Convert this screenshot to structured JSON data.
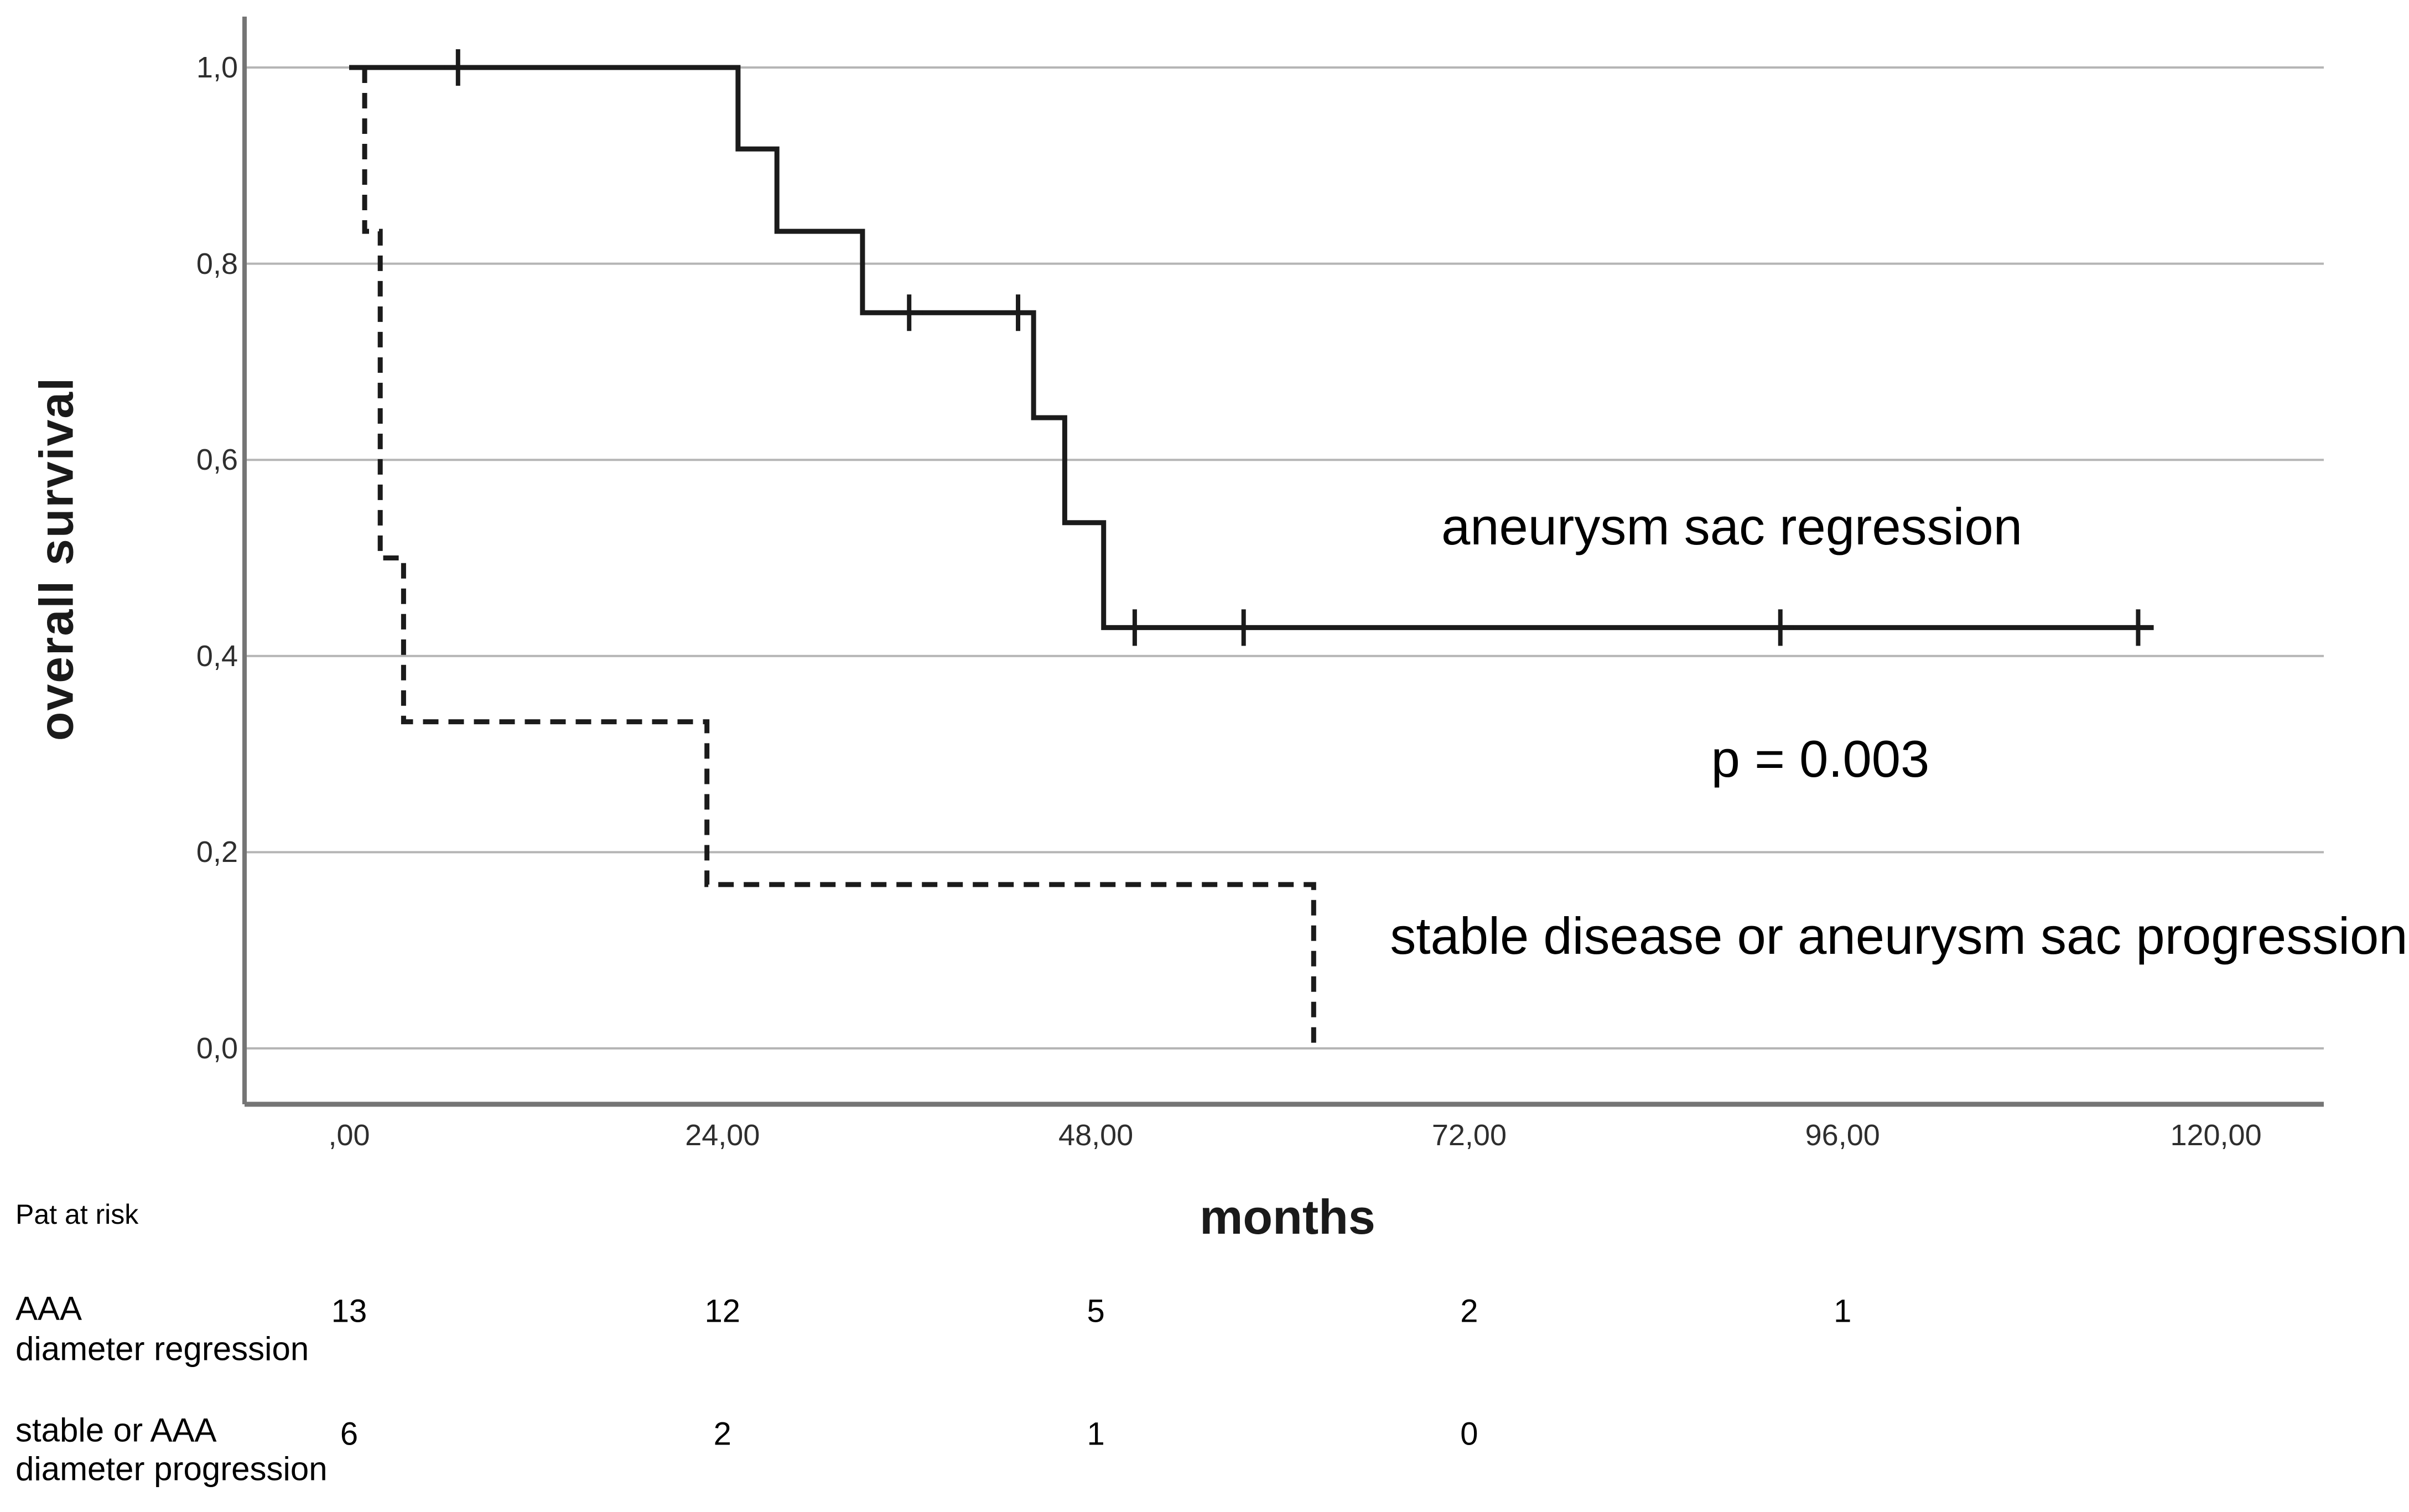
{
  "colors": {
    "curve": "#1b1b1b",
    "gridline": "#b5b5b5",
    "axis": "#757575",
    "background": "#ffffff",
    "text": "#000000"
  },
  "chart_data": {
    "type": "line",
    "subtype": "kaplan_meier_survival_steps",
    "title": "",
    "xlabel": "months",
    "ylabel": "overall survival",
    "xlim": [
      -7,
      127
    ],
    "ylim": [
      0,
      1.0
    ],
    "grid": "horizontal-only",
    "legend_position": "none (labels drawn as in-plot annotations)",
    "x_ticks": {
      "values": [
        0,
        24,
        48,
        72,
        96,
        120
      ],
      "labels": [
        ",00",
        "24,00",
        "48,00",
        "72,00",
        "96,00",
        "120,00"
      ]
    },
    "y_ticks": {
      "values": [
        0,
        0.2,
        0.4,
        0.6,
        0.8,
        1.0
      ],
      "labels": [
        "0,0",
        "0,2",
        "0,4",
        "0,6",
        "0,8",
        "1,0"
      ]
    },
    "series": [
      {
        "name": "aneurysm sac regression",
        "line_style": "solid",
        "color": "#1b1b1b",
        "points": [
          [
            0,
            1.0
          ],
          [
            25,
            1.0
          ],
          [
            25,
            0.917
          ],
          [
            27.5,
            0.917
          ],
          [
            27.5,
            0.833
          ],
          [
            33,
            0.833
          ],
          [
            33,
            0.75
          ],
          [
            44,
            0.75
          ],
          [
            44,
            0.643
          ],
          [
            46,
            0.643
          ],
          [
            46,
            0.536
          ],
          [
            48.5,
            0.536
          ],
          [
            48.5,
            0.429
          ],
          [
            116,
            0.429
          ]
        ],
        "censor_marks": [
          [
            7,
            1.0
          ],
          [
            36,
            0.75
          ],
          [
            43,
            0.75
          ],
          [
            50.5,
            0.429
          ],
          [
            57.5,
            0.429
          ],
          [
            92,
            0.429
          ],
          [
            115,
            0.429
          ]
        ]
      },
      {
        "name": "stable disease or aneurysm sac progression",
        "line_style": "dashed",
        "color": "#1b1b1b",
        "points": [
          [
            1,
            1.0
          ],
          [
            1,
            0.833
          ],
          [
            2,
            0.833
          ],
          [
            2,
            0.5
          ],
          [
            3.5,
            0.5
          ],
          [
            3.5,
            0.333
          ],
          [
            23,
            0.333
          ],
          [
            23,
            0.167
          ],
          [
            62,
            0.167
          ],
          [
            62,
            0
          ]
        ],
        "censor_marks": []
      }
    ],
    "annotations": [
      {
        "id": "solid-series-label",
        "text": "aneurysm sac regression"
      },
      {
        "id": "p-value",
        "text": "p = 0.003"
      },
      {
        "id": "dashed-series-label",
        "text": "stable disease or aneurysm sac progression"
      }
    ]
  },
  "risk_table": {
    "title": "Pat at risk",
    "rows": [
      {
        "label_line1": "AAA",
        "label_line2": "diameter regression",
        "values": [
          "13",
          "12",
          "5",
          "2",
          "1"
        ]
      },
      {
        "label_line1": "stable or AAA",
        "label_line2": "diameter progression",
        "values": [
          "6",
          "2",
          "1",
          "0"
        ]
      }
    ]
  }
}
